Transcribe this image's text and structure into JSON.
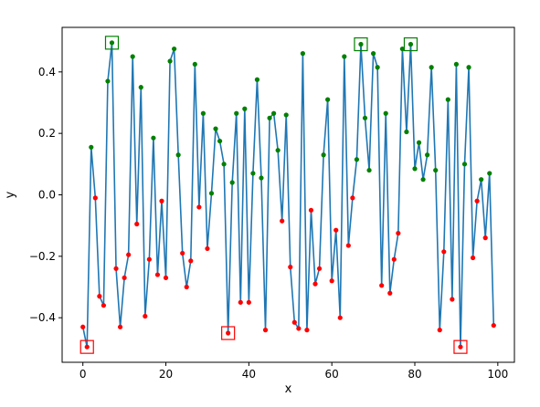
{
  "chart_data": {
    "type": "line",
    "xlabel": "x",
    "ylabel": "y",
    "xlim": [
      -5,
      104
    ],
    "ylim": [
      -0.545,
      0.545
    ],
    "x_ticks": [
      0,
      20,
      40,
      60,
      80,
      100
    ],
    "x_tick_labels": [
      "0",
      "20",
      "40",
      "60",
      "80",
      "100"
    ],
    "y_ticks": [
      -0.4,
      -0.2,
      0.0,
      0.2,
      0.4
    ],
    "y_tick_labels": [
      "−0.4",
      "−0.2",
      "0.0",
      "0.2",
      "0.4"
    ],
    "line_color": "#1f77b4",
    "positive_marker_color": "#008000",
    "negative_marker_color": "#ff0000",
    "x": [
      0,
      1,
      2,
      3,
      4,
      5,
      6,
      7,
      8,
      9,
      10,
      11,
      12,
      13,
      14,
      15,
      16,
      17,
      18,
      19,
      20,
      21,
      22,
      23,
      24,
      25,
      26,
      27,
      28,
      29,
      30,
      31,
      32,
      33,
      34,
      35,
      36,
      37,
      38,
      39,
      40,
      41,
      42,
      43,
      44,
      45,
      46,
      47,
      48,
      49,
      50,
      51,
      52,
      53,
      54,
      55,
      56,
      57,
      58,
      59,
      60,
      61,
      62,
      63,
      64,
      65,
      66,
      67,
      68,
      69,
      70,
      71,
      72,
      73,
      74,
      75,
      76,
      77,
      78,
      79,
      80,
      81,
      82,
      83,
      84,
      85,
      86,
      87,
      88,
      89,
      90,
      91,
      92,
      93,
      94,
      95,
      96,
      97,
      98,
      99
    ],
    "y": [
      -0.43,
      -0.495,
      0.155,
      -0.01,
      -0.33,
      -0.36,
      0.37,
      0.495,
      -0.24,
      -0.43,
      -0.27,
      -0.195,
      0.45,
      -0.095,
      0.35,
      -0.395,
      -0.21,
      0.185,
      -0.26,
      -0.02,
      -0.27,
      0.435,
      0.475,
      0.13,
      -0.19,
      -0.3,
      -0.215,
      0.425,
      -0.04,
      0.265,
      -0.175,
      0.005,
      0.215,
      0.175,
      0.1,
      -0.45,
      0.04,
      0.265,
      -0.35,
      0.28,
      -0.35,
      0.07,
      0.375,
      0.055,
      -0.44,
      0.25,
      0.265,
      0.145,
      -0.085,
      0.26,
      -0.235,
      -0.415,
      -0.435,
      0.46,
      -0.44,
      -0.05,
      -0.29,
      -0.24,
      0.13,
      0.31,
      -0.28,
      -0.115,
      -0.4,
      0.45,
      -0.165,
      -0.01,
      0.115,
      0.49,
      0.25,
      0.08,
      0.46,
      0.415,
      -0.295,
      0.265,
      -0.32,
      -0.21,
      -0.125,
      0.475,
      0.205,
      0.49,
      0.085,
      0.17,
      0.05,
      0.13,
      0.415,
      0.08,
      -0.44,
      -0.185,
      0.31,
      -0.34,
      0.425,
      -0.495,
      0.1,
      0.415,
      -0.205,
      -0.02,
      0.05,
      -0.14,
      0.07,
      -0.425
    ],
    "highlighted_maxima": [
      {
        "x": 7,
        "y": 0.495
      },
      {
        "x": 67,
        "y": 0.49
      },
      {
        "x": 79,
        "y": 0.49
      }
    ],
    "highlighted_minima": [
      {
        "x": 1,
        "y": -0.495
      },
      {
        "x": 35,
        "y": -0.45
      },
      {
        "x": 91,
        "y": -0.495
      }
    ],
    "grid": false,
    "legend": "none"
  }
}
